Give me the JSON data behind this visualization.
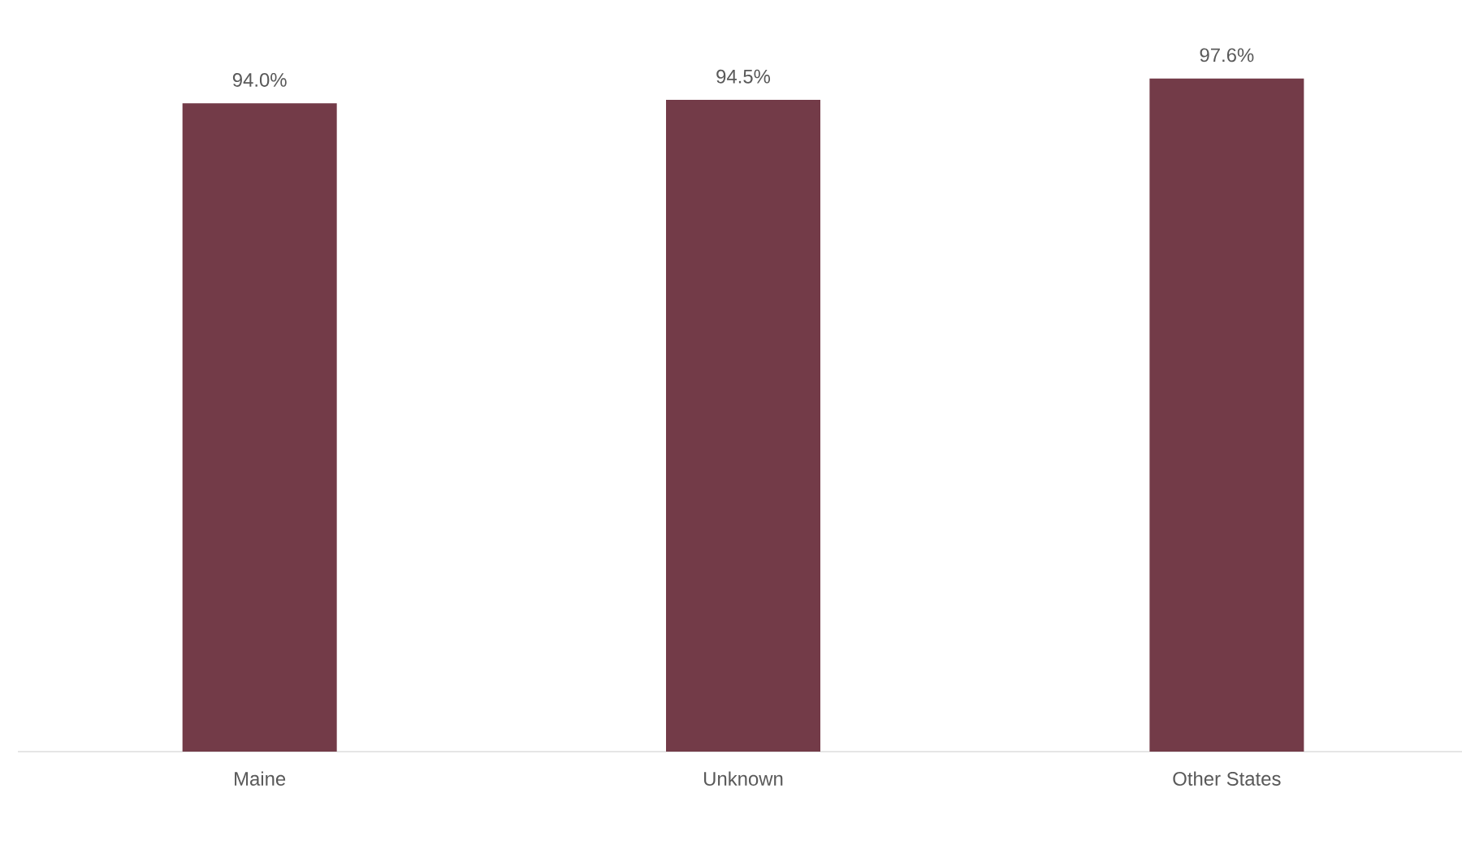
{
  "chart_data": {
    "type": "bar",
    "categories": [
      "Maine",
      "Unknown",
      "Other States"
    ],
    "values": [
      94.0,
      94.5,
      97.6
    ],
    "value_labels": [
      "94.0%",
      "94.5%",
      "97.6%"
    ],
    "color": "#733b48"
  }
}
